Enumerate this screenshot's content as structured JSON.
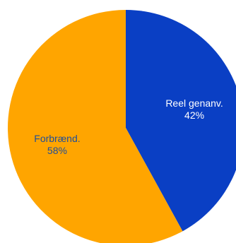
{
  "chart_data": {
    "type": "pie",
    "title": "",
    "start_angle_deg": 0,
    "direction": "clockwise",
    "slices": [
      {
        "label": "Reel genanv.",
        "percent_text": "42%",
        "value": 42,
        "color": "#0A3FC4",
        "label_color": "#ffffff"
      },
      {
        "label": "Forbrænd.",
        "percent_text": "58%",
        "value": 58,
        "color": "#FFA500",
        "label_color": "#1F4E99"
      }
    ]
  }
}
